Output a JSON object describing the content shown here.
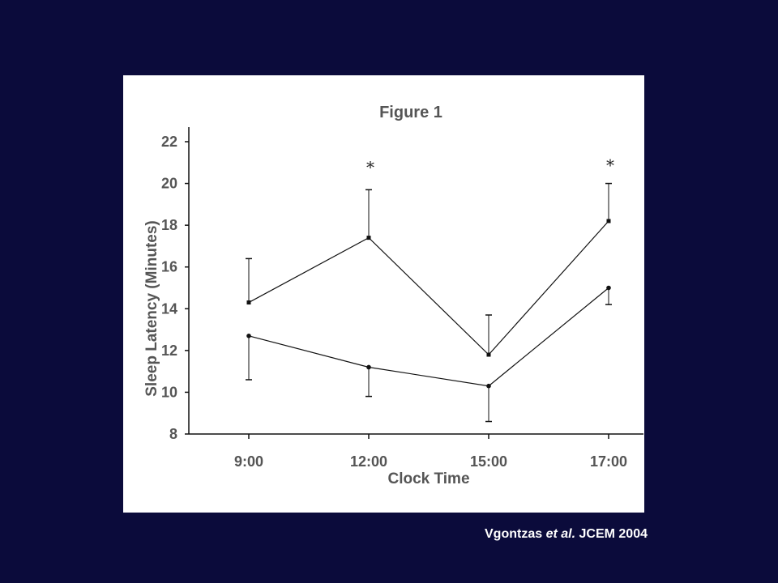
{
  "citation": {
    "author": "Vgontzas",
    "etal": "et al.",
    "journal": "JCEM 2004"
  },
  "chart_data": {
    "type": "line",
    "title": "Figure 1",
    "xlabel": "Clock Time",
    "ylabel": "Sleep Latency (Minutes)",
    "categories": [
      "9:00",
      "12:00",
      "15:00",
      "17:00"
    ],
    "ylim": [
      8,
      22
    ],
    "yticks": [
      "8",
      "10",
      "12",
      "14",
      "16",
      "18",
      "20",
      "22"
    ],
    "grid": false,
    "series": [
      {
        "marker": "square",
        "values": [
          14.3,
          17.4,
          11.8,
          18.2
        ],
        "error_upper": [
          16.4,
          19.7,
          13.7,
          20.0
        ],
        "error_lower": [
          null,
          null,
          null,
          null
        ]
      },
      {
        "marker": "circle",
        "values": [
          12.7,
          11.2,
          10.3,
          15.0
        ],
        "error_upper": [
          null,
          null,
          null,
          null
        ],
        "error_lower": [
          10.6,
          9.8,
          8.6,
          14.2
        ]
      }
    ],
    "annotations": [
      {
        "category": "12:00",
        "text": "*",
        "y": 20.9
      },
      {
        "category": "17:00",
        "text": "*",
        "y": 21.0
      }
    ]
  }
}
